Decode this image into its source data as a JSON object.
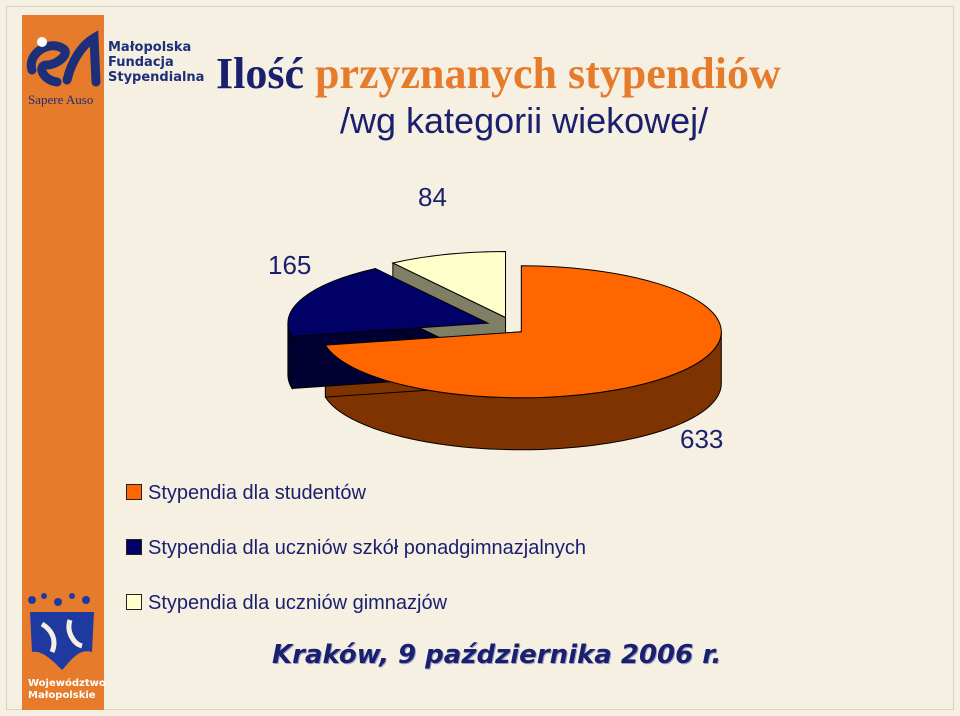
{
  "branding": {
    "org_line1": "Małopolska",
    "org_line2": "Fundacja",
    "org_line3": "Stypendialna",
    "motto": "Sapere Auso",
    "region_line1": "Województwo",
    "region_line2": "Małopolskie"
  },
  "chart_data": {
    "type": "pie",
    "title_word1": "Ilość",
    "title_word2": "przyznanych stypendiów",
    "subtitle": "/wg kategorii wiekowej/",
    "slices": [
      {
        "label": "Stypendia dla studentów",
        "value": 633,
        "color": "#ff6600",
        "side_color": "#7f3300"
      },
      {
        "label": "Stypendia dla uczniów szkół ponadgimnazjalnych",
        "value": 165,
        "color": "#000066",
        "side_color": "#000033"
      },
      {
        "label": "Stypendia dla uczniów gimnazjów",
        "value": 84,
        "color": "#ffffcc",
        "side_color": "#7f7f66"
      }
    ],
    "legend_position": "bottom-left",
    "style": "3d-exploded"
  },
  "labels": {
    "value_633": "633",
    "value_165": "165",
    "value_84": "84"
  },
  "footer": "Kraków, 9 października 2006 r."
}
